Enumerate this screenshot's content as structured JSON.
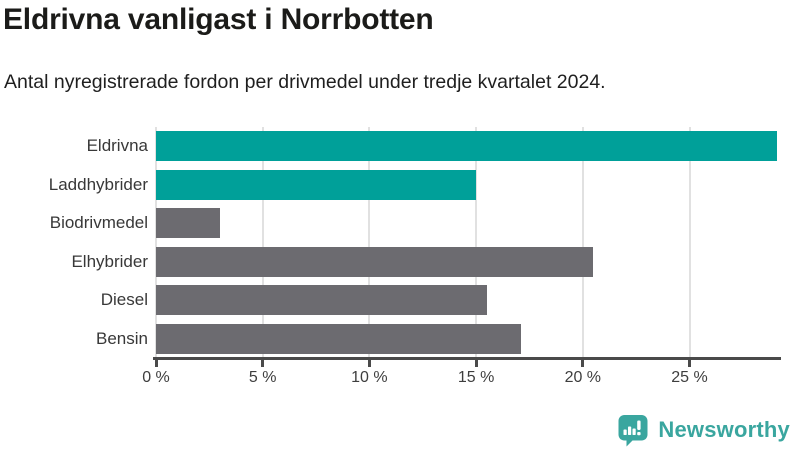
{
  "chart_data": {
    "type": "bar",
    "orientation": "horizontal",
    "title": "Eldrivna vanligast i Norrbotten",
    "subtitle": "Antal nyregistrerade fordon per drivmedel under tredje kvartalet 2024.",
    "categories": [
      "Eldrivna",
      "Laddhybrider",
      "Biodrivmedel",
      "Elhybrider",
      "Diesel",
      "Bensin"
    ],
    "values": [
      29.1,
      15.0,
      3.0,
      20.5,
      15.5,
      17.1
    ],
    "unit": "%",
    "xlim": [
      0,
      29.1
    ],
    "xticks": [
      0,
      5,
      10,
      15,
      20,
      25
    ],
    "xtick_labels": [
      "0 %",
      "5 %",
      "10 %",
      "15 %",
      "20 %",
      "25 %"
    ],
    "bar_colors": [
      "#00a099",
      "#00a099",
      "#6c6b70",
      "#6c6b70",
      "#6c6b70",
      "#6c6b70"
    ],
    "colors": {
      "highlight": "#00a099",
      "default": "#6c6b70",
      "gridline": "#e1e1e1",
      "axis": "#4a4a4a",
      "category_label": "#383838",
      "tick_label": "#3e3e3e"
    },
    "grid": true,
    "legend": "none",
    "ylabel": "",
    "xlabel": ""
  },
  "footer": {
    "brand": "Newsworthy",
    "logo_icon": "newsworthy-speech-bubble-bar-chart-icon",
    "brand_color": "#3aa69f"
  }
}
